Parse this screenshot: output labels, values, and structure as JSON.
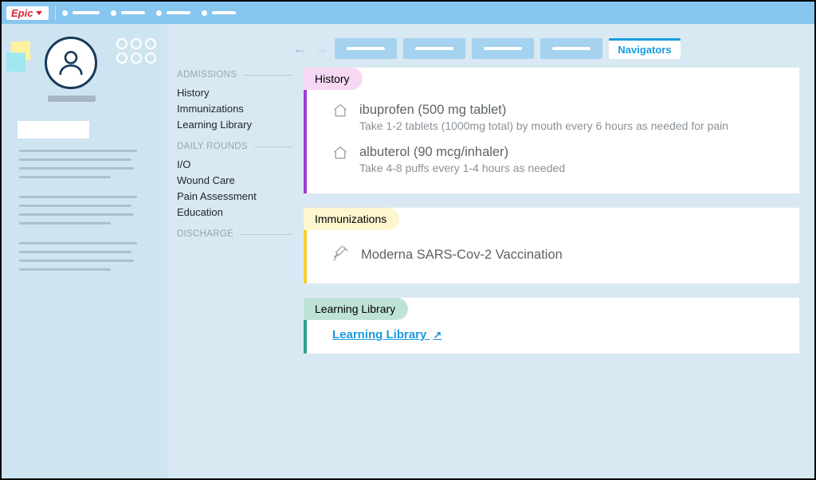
{
  "app": {
    "brand": "Epic"
  },
  "toolbar": {
    "items": [
      {
        "dash_width": 34
      },
      {
        "dash_width": 30
      },
      {
        "dash_width": 30
      },
      {
        "dash_width": 30
      }
    ]
  },
  "tabs": {
    "ghost_count": 4,
    "active_label": "Navigators"
  },
  "navigator": {
    "sections": [
      {
        "title": "ADMISSIONS",
        "items": [
          "History",
          "Immunizations",
          "Learning Library"
        ]
      },
      {
        "title": "DAILY ROUNDS",
        "items": [
          "I/O",
          "Wound Care",
          "Pain Assessment",
          "Education"
        ]
      },
      {
        "title": "DISCHARGE",
        "items": []
      }
    ]
  },
  "cards": {
    "history": {
      "title": "History",
      "stripe_color": "#9c3bd6",
      "head_bg": "#f6d8f4",
      "meds": [
        {
          "name": "ibuprofen (500 mg tablet)",
          "instr": "Take 1-2 tablets (1000mg total) by mouth every 6 hours as needed for pain"
        },
        {
          "name": "albuterol (90 mcg/inhaler)",
          "instr": "Take 4-8 puffs every 1-4 hours as needed"
        }
      ]
    },
    "immunizations": {
      "title": "Immunizations",
      "stripe_color": "#f2cf2f",
      "head_bg": "#fef6cf",
      "items": [
        {
          "name": "Moderna SARS-Cov-2 Vaccination"
        }
      ]
    },
    "library": {
      "title": "Learning Library",
      "stripe_color": "#2fa08b",
      "head_bg": "#bfe2d7",
      "link_label": "Learning Library"
    }
  },
  "colors": {
    "toolbar_bg": "#87c6ef",
    "content_bg": "#d8e9f3",
    "patient_bg": "#cfe4f1",
    "accent": "#1a9be0"
  }
}
